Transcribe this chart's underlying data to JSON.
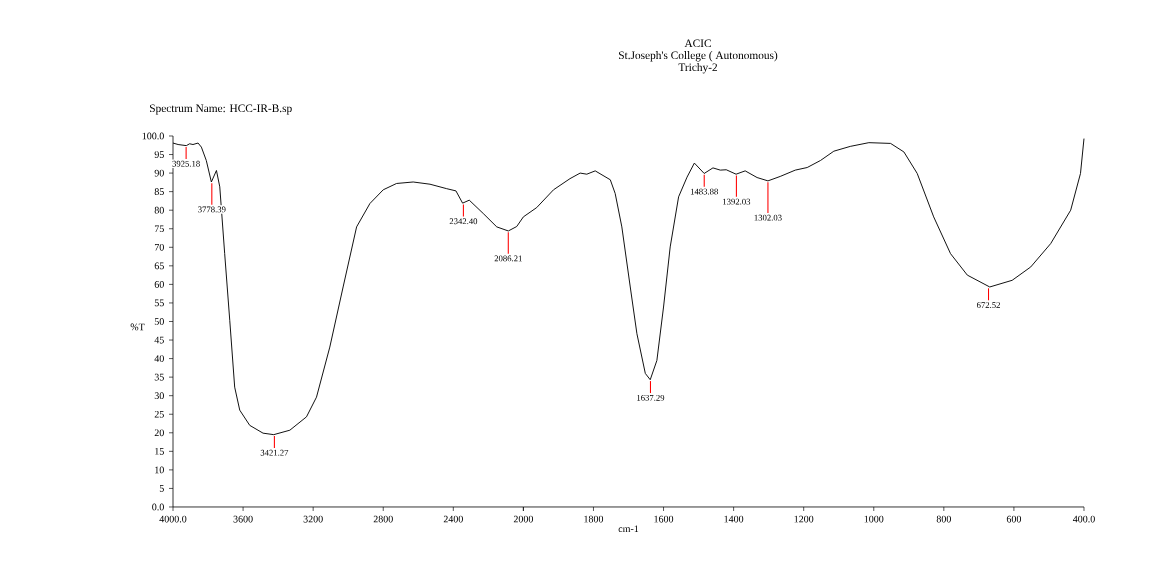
{
  "chart_data": [
    {
      "type": "line",
      "ylabel": "%T",
      "x": [
        4000,
        3971,
        3924,
        3905,
        3886,
        3857,
        3838,
        3810,
        3781,
        3752,
        3733,
        3705,
        3676,
        3648,
        3619,
        3562,
        3486,
        3425,
        3333,
        3238,
        3181,
        3105,
        3029,
        2952,
        2876,
        2800,
        2724,
        2629,
        2533,
        2438,
        2385,
        2347,
        2309,
        2229,
        2152,
        2086,
        2038,
        2000
      ],
      "series": [
        {
          "color": "#000000",
          "values": [
            98.1,
            97.7,
            97.4,
            97.9,
            97.7,
            98.1,
            97.0,
            93.4,
            87.6,
            90.7,
            86.3,
            68.3,
            50.3,
            32.3,
            26.1,
            22.0,
            19.9,
            19.5,
            20.7,
            24.3,
            29.6,
            43.1,
            59.3,
            75.5,
            81.8,
            85.5,
            87.2,
            87.6,
            87.0,
            85.8,
            85.2,
            81.9,
            82.7,
            79.1,
            75.5,
            74.4,
            75.6,
            78.2
          ]
        }
      ],
      "xlim": [
        4000,
        2000
      ],
      "ylim": [
        0,
        100
      ],
      "xticks": [
        {
          "value": 4000,
          "label": "4000.0"
        },
        3600,
        3200,
        2800,
        2400,
        2000
      ],
      "yticks": [
        {
          "value": 0,
          "label": "0.0"
        },
        5,
        10,
        15,
        20,
        25,
        30,
        35,
        40,
        45,
        50,
        55,
        60,
        65,
        70,
        75,
        80,
        85,
        90,
        95,
        {
          "value": 100,
          "label": "100.0"
        }
      ],
      "annotations": [
        "Spectrum Name: HCC-IR-B.sp",
        {
          "text": "3925.18",
          "x": 3925.18,
          "y": 97.4
        },
        {
          "text": "3778.39",
          "x": 3778.39,
          "y": 87.6
        },
        {
          "text": "3421.27",
          "x": 3421.27,
          "y": 19.5
        },
        {
          "text": "2342.40",
          "x": 2342.4,
          "y": 81.9
        },
        {
          "text": "2086.21",
          "x": 2086.21,
          "y": 74.4
        }
      ]
    },
    {
      "type": "line",
      "title": "ACIC",
      "subtitle": "St.Joseph's College ( Autonomous)",
      "xlabel": "cm-1",
      "x": [
        2000,
        1962,
        1914,
        1867,
        1838,
        1819,
        1795,
        1752,
        1738,
        1719,
        1695,
        1676,
        1652,
        1638,
        1619,
        1600,
        1581,
        1557,
        1533,
        1512,
        1484,
        1459,
        1438,
        1421,
        1393,
        1367,
        1333,
        1302,
        1267,
        1224,
        1190,
        1152,
        1114,
        1067,
        1014,
        952,
        914,
        876,
        829,
        781,
        733,
        669,
        605,
        552,
        495,
        438,
        410,
        400
      ],
      "series": [
        {
          "color": "#000000",
          "values": [
            78.2,
            80.7,
            85.5,
            88.5,
            90.0,
            89.7,
            90.6,
            88.2,
            84.5,
            75.5,
            59.3,
            46.7,
            36.0,
            34.3,
            39.5,
            53.9,
            70.1,
            83.6,
            88.9,
            92.7,
            89.9,
            91.4,
            90.8,
            90.9,
            89.7,
            90.6,
            88.8,
            87.9,
            89.1,
            90.8,
            91.5,
            93.4,
            95.9,
            97.2,
            98.2,
            98.0,
            95.7,
            89.9,
            78.2,
            68.3,
            62.5,
            59.3,
            61.1,
            64.7,
            71.0,
            80.0,
            89.9,
            99.3
          ]
        }
      ],
      "xlim": [
        2000,
        400
      ],
      "ylim": [
        0,
        100
      ],
      "xticks": [
        {
          "value": 2000,
          "label": null
        },
        1800,
        1600,
        1400,
        1200,
        1000,
        800,
        600,
        {
          "value": 400,
          "label": "400.0"
        }
      ],
      "tick_labels": "x",
      "annotations": [
        "Trichy-2",
        {
          "text": "1637.29",
          "x": 1637.29,
          "y": 34.3
        },
        {
          "text": "1483.88",
          "x": 1483.88,
          "y": 89.9
        },
        {
          "text": "1392.03",
          "x": 1392.03,
          "y": 89.7
        },
        {
          "text": "1302.03",
          "x": 1302.03,
          "y": 87.9
        },
        {
          "text": "672.52",
          "x": 672.52,
          "y": 59.3
        }
      ]
    }
  ]
}
